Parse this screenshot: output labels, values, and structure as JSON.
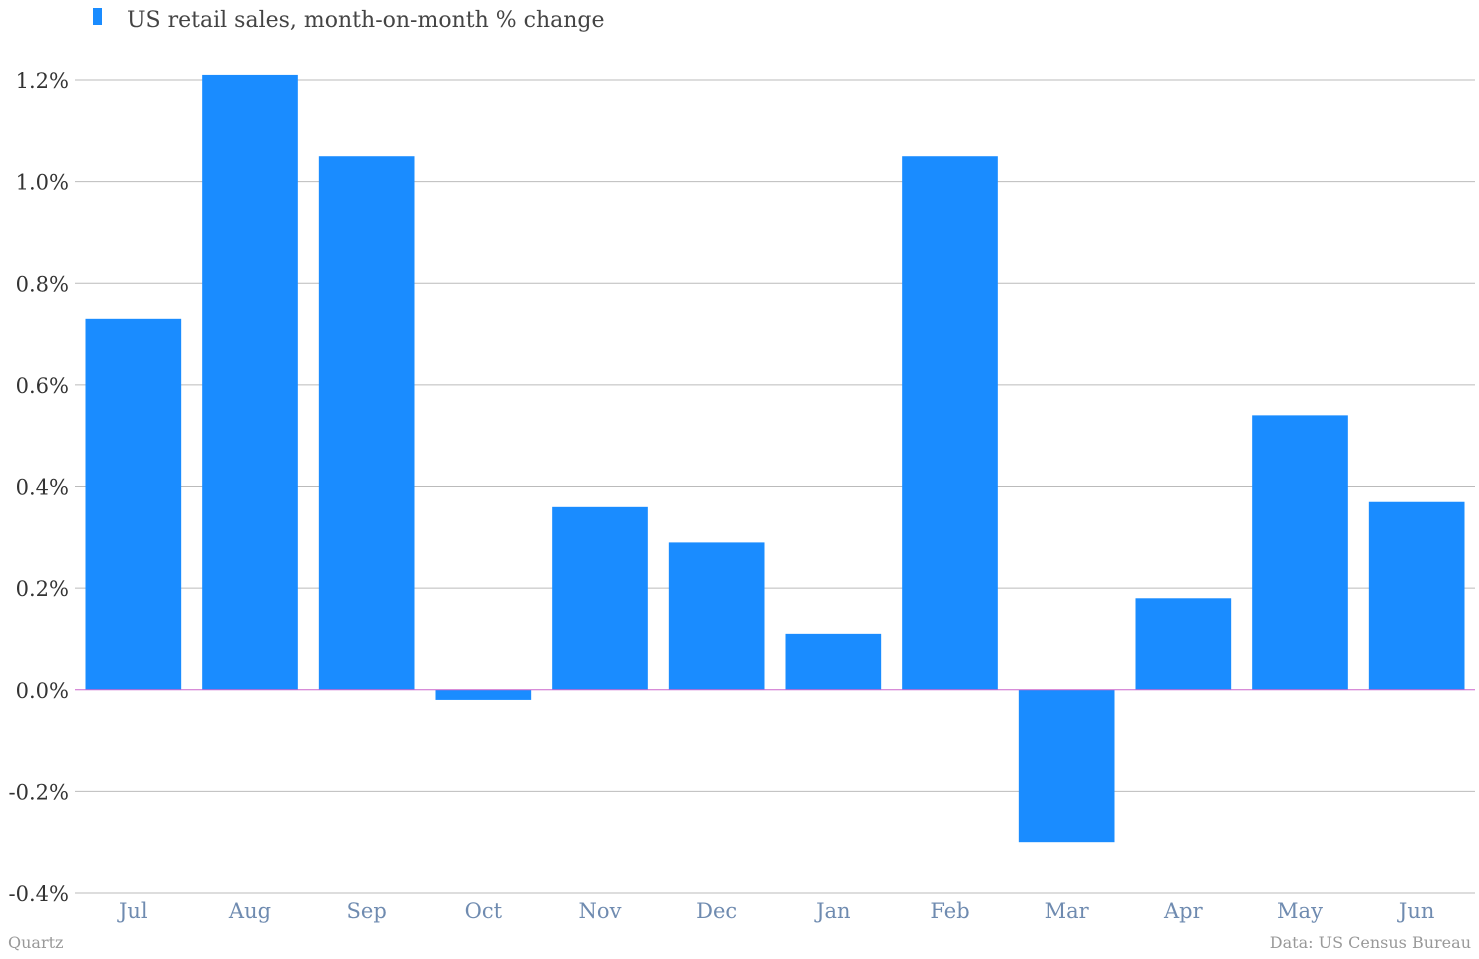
{
  "legend": {
    "label": "US retail sales, month-on-month % change"
  },
  "credits": {
    "source_left": "Quartz",
    "source_right": "Data: US Census Bureau"
  },
  "colors": {
    "bar": "#1a8cff",
    "grid": "#bbbbbb",
    "zero_line": "#cc66cc",
    "x_tick_text": "#6f8bb0",
    "y_tick_text": "#333333"
  },
  "chart_data": {
    "type": "bar",
    "title": "",
    "xlabel": "",
    "ylabel": "",
    "categories": [
      "Jul",
      "Aug",
      "Sep",
      "Oct",
      "Nov",
      "Dec",
      "Jan",
      "Feb",
      "Mar",
      "Apr",
      "May",
      "Jun"
    ],
    "series": [
      {
        "name": "US retail sales, month-on-month % change",
        "values": [
          0.73,
          1.21,
          1.05,
          -0.02,
          0.36,
          0.29,
          0.11,
          1.05,
          -0.3,
          0.18,
          0.54,
          0.37
        ]
      }
    ],
    "ylim": [
      -0.4,
      1.2
    ],
    "yticks": [
      1.2,
      1.0,
      0.8,
      0.6,
      0.4,
      0.2,
      0.0,
      -0.2,
      -0.4
    ],
    "ytick_labels": [
      "1.2%",
      "1.0%",
      "0.8%",
      "0.6%",
      "0.4%",
      "0.2%",
      "0.0%",
      "-0.2%",
      "-0.4%"
    ],
    "grid": true,
    "legend_position": "top-left"
  }
}
